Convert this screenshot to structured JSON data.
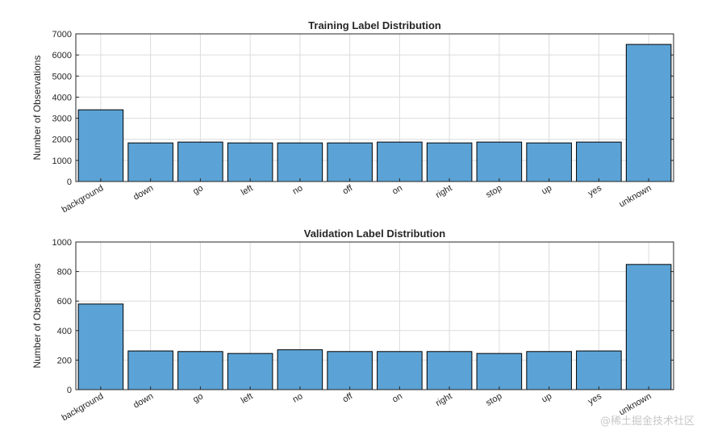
{
  "chart_data": [
    {
      "type": "bar",
      "title": "Training Label Distribution",
      "xlabel": "",
      "ylabel": "Number of Observations",
      "categories": [
        "background",
        "down",
        "go",
        "left",
        "no",
        "off",
        "on",
        "right",
        "stop",
        "up",
        "yes",
        "unknown"
      ],
      "values": [
        3400,
        1830,
        1870,
        1830,
        1830,
        1830,
        1870,
        1830,
        1870,
        1830,
        1870,
        6500
      ],
      "ylim": [
        0,
        7000
      ],
      "yticks": [
        0,
        1000,
        2000,
        3000,
        4000,
        5000,
        6000,
        7000
      ],
      "grid": true,
      "bar_color": "#5ba3d6",
      "edge_color": "#000000"
    },
    {
      "type": "bar",
      "title": "Validation Label Distribution",
      "xlabel": "",
      "ylabel": "Number of Observations",
      "categories": [
        "background",
        "down",
        "go",
        "left",
        "no",
        "off",
        "on",
        "right",
        "stop",
        "up",
        "yes",
        "unknown"
      ],
      "values": [
        580,
        262,
        258,
        245,
        270,
        258,
        258,
        258,
        245,
        258,
        262,
        848
      ],
      "ylim": [
        0,
        1000
      ],
      "yticks": [
        0,
        200,
        400,
        600,
        800,
        1000
      ],
      "grid": true,
      "bar_color": "#5ba3d6",
      "edge_color": "#000000"
    }
  ],
  "watermark": "@稀土掘金技术社区"
}
